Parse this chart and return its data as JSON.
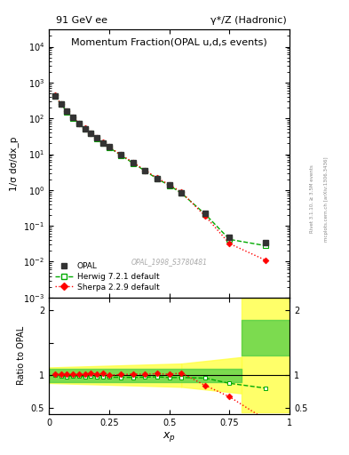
{
  "title_left": "91 GeV ee",
  "title_right": "γ*/Z (Hadronic)",
  "plot_title": "Momentum Fraction",
  "plot_subtitle": "(OPAL u,d,s events)",
  "ylabel_main": "1/σ dσ/dx_p",
  "ylabel_ratio": "Ratio to OPAL",
  "xlabel": "$x_p$",
  "watermark": "OPAL_1998_S3780481",
  "right_label1": "Rivet 3.1.10, ≥ 3.5M events",
  "right_label2": "mcplots.cern.ch [arXiv:1306.3436]",
  "opal_x": [
    0.025,
    0.05,
    0.075,
    0.1,
    0.125,
    0.15,
    0.175,
    0.2,
    0.225,
    0.25,
    0.3,
    0.35,
    0.4,
    0.45,
    0.5,
    0.55,
    0.65,
    0.75,
    0.9
  ],
  "opal_y": [
    430,
    250,
    158,
    104,
    72,
    52,
    38,
    28,
    21,
    16,
    9.5,
    5.8,
    3.5,
    2.1,
    1.4,
    0.85,
    0.22,
    0.048,
    0.035
  ],
  "opal_yerr": [
    15,
    8,
    5,
    3.5,
    2.5,
    1.8,
    1.3,
    1.0,
    0.75,
    0.6,
    0.35,
    0.22,
    0.13,
    0.08,
    0.055,
    0.035,
    0.01,
    0.003,
    0.004
  ],
  "herwig_x": [
    0.025,
    0.05,
    0.075,
    0.1,
    0.125,
    0.15,
    0.175,
    0.2,
    0.225,
    0.25,
    0.3,
    0.35,
    0.4,
    0.45,
    0.5,
    0.55,
    0.65,
    0.75,
    0.9
  ],
  "herwig_y": [
    430,
    248,
    155,
    103,
    71,
    51,
    37.5,
    27.5,
    20.5,
    15.5,
    9.2,
    5.6,
    3.4,
    2.05,
    1.35,
    0.82,
    0.21,
    0.042,
    0.028
  ],
  "sherpa_x": [
    0.025,
    0.05,
    0.075,
    0.1,
    0.125,
    0.15,
    0.175,
    0.2,
    0.225,
    0.25,
    0.3,
    0.35,
    0.4,
    0.45,
    0.5,
    0.55,
    0.65,
    0.75,
    0.9
  ],
  "sherpa_y": [
    435,
    252,
    160,
    106,
    73,
    53,
    39,
    28.5,
    21.5,
    16,
    9.6,
    5.9,
    3.55,
    2.15,
    1.42,
    0.88,
    0.185,
    0.032,
    0.011
  ],
  "ratio_herwig_x": [
    0.025,
    0.05,
    0.075,
    0.1,
    0.125,
    0.15,
    0.175,
    0.2,
    0.225,
    0.25,
    0.3,
    0.35,
    0.4,
    0.45,
    0.5,
    0.55,
    0.65,
    0.75,
    0.9
  ],
  "ratio_herwig_y": [
    1.0,
    0.99,
    0.98,
    0.99,
    0.985,
    0.98,
    0.985,
    0.982,
    0.976,
    0.969,
    0.968,
    0.966,
    0.971,
    0.976,
    0.964,
    0.965,
    0.955,
    0.875,
    0.8
  ],
  "ratio_sherpa_x": [
    0.025,
    0.05,
    0.075,
    0.1,
    0.125,
    0.15,
    0.175,
    0.2,
    0.225,
    0.25,
    0.3,
    0.35,
    0.4,
    0.45,
    0.5,
    0.55,
    0.65,
    0.75,
    0.9
  ],
  "ratio_sherpa_y": [
    1.01,
    1.01,
    1.01,
    1.02,
    1.014,
    1.019,
    1.026,
    1.018,
    1.024,
    1.0,
    1.011,
    1.017,
    1.014,
    1.024,
    1.014,
    1.035,
    0.841,
    0.667,
    0.314
  ],
  "color_opal": "#333333",
  "color_herwig": "#00aa00",
  "color_sherpa": "#ff0000",
  "color_herwig_band": "#44cc44",
  "color_sherpa_band": "#ffff44",
  "ylim_main": [
    0.001,
    30000.0
  ],
  "ylim_ratio": [
    0.4,
    2.2
  ],
  "xlim": [
    0.0,
    1.0
  ]
}
